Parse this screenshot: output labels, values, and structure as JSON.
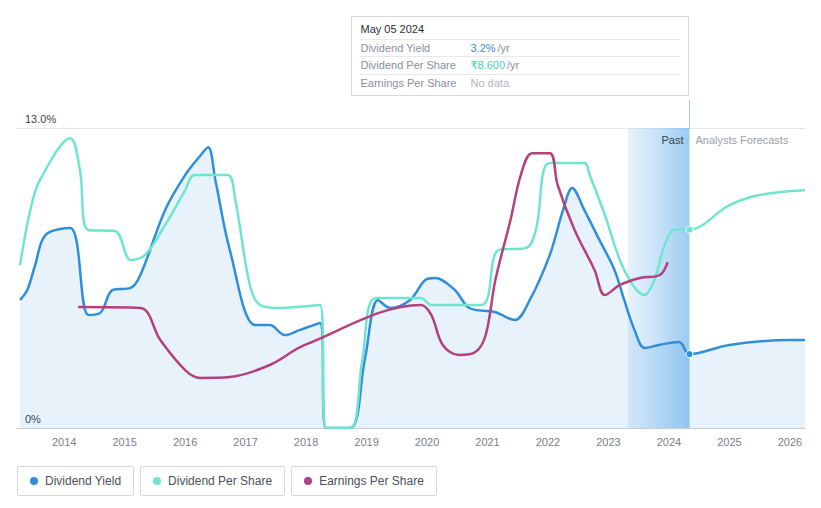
{
  "chart_data": {
    "type": "line",
    "xlim": [
      2013.22,
      2026.25
    ],
    "xticks": [
      2014,
      2015,
      2016,
      2017,
      2018,
      2019,
      2020,
      2021,
      2022,
      2023,
      2024,
      2025,
      2026
    ],
    "ylim": [
      0,
      13
    ],
    "yticks": [
      {
        "value": 0,
        "label": "0%"
      },
      {
        "value": 13,
        "label": "13.0%"
      }
    ],
    "y2lim": [
      0,
      13
    ],
    "y2ticks": [
      0,
      13
    ],
    "tick_labels": "y",
    "grid": true,
    "legend": "bottom left",
    "series": [
      {
        "name": "Dividend Yield",
        "color": "#2f8fdd",
        "type": "area",
        "x": [
          2013.27,
          2013.39,
          2013.52,
          2013.69,
          2014.1,
          2014.4,
          2014.6,
          2014.8,
          2015.1,
          2015.26,
          2015.67,
          2016.0,
          2016.25,
          2016.38,
          2016.5,
          2016.74,
          2017.16,
          2017.4,
          2017.65,
          2017.9,
          2018.23,
          2018.33,
          2018.73,
          2018.97,
          2019.19,
          2019.39,
          2019.72,
          2019.97,
          2020.13,
          2020.46,
          2020.7,
          2021.12,
          2021.45,
          2021.7,
          2022.03,
          2022.25,
          2022.4,
          2022.6,
          2022.85,
          2023.1,
          2023.26,
          2023.43,
          2023.6,
          2023.84,
          2024.17,
          2024.34,
          2025.0,
          2026.0,
          2026.25
        ],
        "values": [
          5.55,
          5.98,
          7.06,
          8.36,
          8.67,
          4.9,
          5.0,
          5.98,
          6.07,
          6.63,
          9.45,
          10.96,
          11.8,
          12.17,
          10.75,
          7.7,
          4.46,
          4.46,
          4.03,
          4.25,
          4.55,
          0,
          0,
          2.95,
          5.55,
          5.2,
          5.55,
          6.41,
          6.5,
          5.98,
          5.2,
          5.03,
          4.68,
          5.55,
          7.5,
          9.45,
          10.4,
          9.45,
          8.15,
          6.85,
          5.55,
          4.25,
          3.47,
          3.6,
          3.73,
          3.2,
          3.6,
          3.81,
          3.81
        ]
      },
      {
        "name": "Dividend Per Share",
        "color": "#6fe5d0",
        "axis": "y2",
        "x": [
          2013.27,
          2013.44,
          2013.6,
          2014.1,
          2014.26,
          2014.4,
          2014.84,
          2015.1,
          2015.34,
          2015.67,
          2016.0,
          2016.16,
          2016.7,
          2016.83,
          2017.07,
          2017.24,
          2017.57,
          2018.23,
          2018.33,
          2018.73,
          2018.93,
          2019.16,
          2019.9,
          2020.07,
          2020.9,
          2021.18,
          2021.64,
          2021.8,
          2022.03,
          2022.6,
          2022.69,
          2022.94,
          2023.26,
          2023.6,
          2023.76,
          2023.93,
          2024.1,
          2024.34,
          2025.0,
          2025.5,
          2026.25
        ],
        "values": [
          7.06,
          9.45,
          10.75,
          12.56,
          11.18,
          8.58,
          8.54,
          7.28,
          7.5,
          8.8,
          10.3,
          10.96,
          10.96,
          9.88,
          6.2,
          5.33,
          5.2,
          5.33,
          0,
          0,
          2.95,
          5.63,
          5.63,
          5.33,
          5.33,
          7.71,
          7.8,
          8.58,
          11.48,
          11.48,
          10.96,
          9.23,
          6.85,
          5.76,
          6.41,
          7.93,
          8.6,
          8.6,
          9.66,
          10.1,
          10.3
        ]
      },
      {
        "name": "Earnings Per Share",
        "color": "#b4407e",
        "axis": "y2",
        "x": [
          2014.23,
          2015.26,
          2015.59,
          2016.0,
          2016.25,
          2016.74,
          2017.4,
          2017.98,
          2019.9,
          2020.07,
          2020.26,
          2020.53,
          2020.8,
          2020.97,
          2021.13,
          2021.38,
          2021.55,
          2021.74,
          2022.03,
          2022.16,
          2022.44,
          2022.77,
          2022.94,
          2023.19,
          2023.52,
          2023.85,
          2023.98
        ],
        "values": [
          5.24,
          5.2,
          3.81,
          2.51,
          2.17,
          2.21,
          2.73,
          3.6,
          5.33,
          4.9,
          3.6,
          3.16,
          3.29,
          4.03,
          6.41,
          9.01,
          10.96,
          11.91,
          11.91,
          10.53,
          8.58,
          6.85,
          5.76,
          6.2,
          6.5,
          6.63,
          7.19
        ]
      }
    ],
    "annotations": {
      "past_label": "Past",
      "forecast_label": "Analysts Forecasts",
      "past_start": 2023.32,
      "now": 2024.34,
      "tooltip": {
        "date": "May 05 2024",
        "rows": [
          {
            "label": "Dividend Yield",
            "value": "3.2%",
            "unit": "/yr",
            "series": "Dividend Yield"
          },
          {
            "label": "Dividend Per Share",
            "value": "₹8.600",
            "unit": "/yr",
            "series": "Dividend Per Share"
          },
          {
            "label": "Earnings Per Share",
            "value": "No data"
          }
        ]
      }
    }
  }
}
